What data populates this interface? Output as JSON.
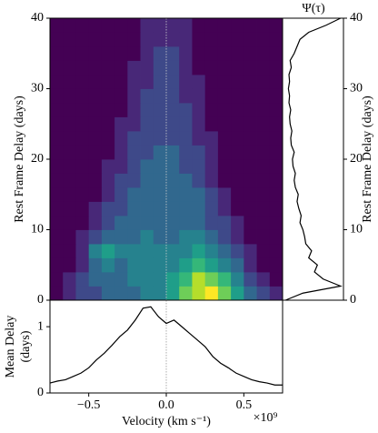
{
  "chart_data": [
    {
      "type": "heatmap",
      "ylabel": "Rest Frame Delay (days)",
      "colormap": "viridis",
      "clim": [
        0,
        9
      ],
      "xlim": [
        -0.75,
        0.75
      ],
      "ylim": [
        0,
        40
      ],
      "yticks": [
        0,
        10,
        20,
        30,
        40
      ],
      "x_bins": [
        -0.75,
        -0.6667,
        -0.5833,
        -0.5,
        -0.4167,
        -0.3333,
        -0.25,
        -0.1667,
        -0.0833,
        0,
        0.0833,
        0.1667,
        0.25,
        0.3333,
        0.4167,
        0.5,
        0.5833,
        0.6667,
        0.75
      ],
      "y_bins": [
        0,
        2,
        4,
        6,
        8,
        10,
        12,
        14,
        16,
        18,
        20,
        22,
        24,
        26,
        28,
        30,
        32,
        34,
        36,
        38,
        40
      ],
      "values": [
        [
          0,
          1,
          2,
          2,
          3,
          3,
          3,
          4,
          4,
          5,
          7,
          8,
          9,
          7,
          5,
          3,
          2,
          1
        ],
        [
          0,
          1,
          2,
          3,
          3,
          3,
          4,
          4,
          4,
          5,
          6,
          8,
          7,
          6,
          4,
          2,
          1,
          0
        ],
        [
          0,
          0,
          1,
          3,
          4,
          3,
          4,
          4,
          4,
          4,
          5,
          6,
          5,
          4,
          3,
          1,
          0,
          0
        ],
        [
          0,
          0,
          1,
          4,
          5,
          4,
          4,
          4,
          4,
          4,
          4,
          5,
          4,
          3,
          2,
          1,
          0,
          0
        ],
        [
          0,
          0,
          1,
          2,
          3,
          3,
          3,
          4,
          3,
          3,
          4,
          4,
          3,
          2,
          1,
          0,
          0,
          0
        ],
        [
          0,
          0,
          0,
          1,
          2,
          3,
          3,
          3,
          3,
          3,
          3,
          3,
          2,
          2,
          1,
          0,
          0,
          0
        ],
        [
          0,
          0,
          0,
          1,
          2,
          2,
          3,
          3,
          3,
          3,
          3,
          3,
          2,
          1,
          0,
          0,
          0,
          0
        ],
        [
          0,
          0,
          0,
          0,
          1,
          2,
          3,
          3,
          3,
          3,
          3,
          3,
          2,
          1,
          0,
          0,
          0,
          0
        ],
        [
          0,
          0,
          0,
          0,
          1,
          2,
          2,
          3,
          3,
          3,
          3,
          2,
          1,
          0,
          0,
          0,
          0,
          0
        ],
        [
          0,
          0,
          0,
          0,
          1,
          1,
          2,
          3,
          3,
          3,
          2,
          2,
          1,
          0,
          0,
          0,
          0,
          0
        ],
        [
          0,
          0,
          0,
          0,
          0,
          1,
          2,
          2,
          3,
          3,
          2,
          2,
          1,
          0,
          0,
          0,
          0,
          0
        ],
        [
          0,
          0,
          0,
          0,
          0,
          1,
          2,
          2,
          2,
          2,
          2,
          1,
          1,
          0,
          0,
          0,
          0,
          0
        ],
        [
          0,
          0,
          0,
          0,
          0,
          1,
          1,
          2,
          2,
          2,
          2,
          1,
          0,
          0,
          0,
          0,
          0,
          0
        ],
        [
          0,
          0,
          0,
          0,
          0,
          0,
          1,
          2,
          2,
          2,
          2,
          1,
          0,
          0,
          0,
          0,
          0,
          0
        ],
        [
          0,
          0,
          0,
          0,
          0,
          0,
          1,
          2,
          2,
          2,
          1,
          1,
          0,
          0,
          0,
          0,
          0,
          0
        ],
        [
          0,
          0,
          0,
          0,
          0,
          0,
          1,
          1,
          2,
          2,
          1,
          1,
          0,
          0,
          0,
          0,
          0,
          0
        ],
        [
          0,
          0,
          0,
          0,
          0,
          0,
          1,
          1,
          2,
          2,
          1,
          0,
          0,
          0,
          0,
          0,
          0,
          0
        ],
        [
          0,
          0,
          0,
          0,
          0,
          0,
          0,
          1,
          2,
          2,
          1,
          0,
          0,
          0,
          0,
          0,
          0,
          0
        ],
        [
          0,
          0,
          0,
          0,
          0,
          0,
          0,
          1,
          1,
          1,
          1,
          0,
          0,
          0,
          0,
          0,
          0,
          0
        ],
        [
          0,
          0,
          0,
          0,
          0,
          0,
          0,
          1,
          1,
          1,
          1,
          0,
          0,
          0,
          0,
          0,
          0,
          0
        ]
      ]
    },
    {
      "type": "line-vertical",
      "title": "Ψ(τ)",
      "ylabel": "Rest Frame Delay (days)",
      "color": "#000000",
      "xlim": [
        0,
        1.05
      ],
      "ylim": [
        0,
        40
      ],
      "yticks": [
        0,
        10,
        20,
        30,
        40
      ],
      "y": [
        0,
        1,
        2,
        3,
        4,
        5,
        6,
        7,
        8,
        9,
        10,
        11,
        12,
        13,
        14,
        15,
        16,
        17,
        18,
        19,
        20,
        21,
        22,
        23,
        24,
        25,
        26,
        27,
        28,
        29,
        30,
        31,
        32,
        33,
        34,
        35,
        36,
        37,
        38,
        39,
        40
      ],
      "values": [
        0.05,
        0.35,
        1.0,
        0.7,
        0.55,
        0.6,
        0.45,
        0.5,
        0.4,
        0.38,
        0.35,
        0.3,
        0.32,
        0.28,
        0.25,
        0.27,
        0.22,
        0.2,
        0.22,
        0.18,
        0.17,
        0.2,
        0.15,
        0.14,
        0.16,
        0.13,
        0.12,
        0.14,
        0.11,
        0.12,
        0.1,
        0.12,
        0.11,
        0.15,
        0.13,
        0.2,
        0.25,
        0.3,
        0.45,
        0.75,
        1.0
      ]
    },
    {
      "type": "line",
      "ylabel": [
        "Mean Delay",
        "(days)"
      ],
      "xlabel": "Velocity (km s⁻¹)",
      "x_multiplier": "×10⁹",
      "color": "#000000",
      "xlim": [
        -0.75,
        0.75
      ],
      "ylim": [
        0,
        1.4
      ],
      "yticks": [
        0,
        1
      ],
      "xticks": [
        {
          "value": -0.5,
          "label": "−0.5"
        },
        {
          "value": 0,
          "label": "0.0"
        },
        0.5
      ],
      "x": [
        -0.75,
        -0.7,
        -0.65,
        -0.6,
        -0.55,
        -0.5,
        -0.45,
        -0.4,
        -0.35,
        -0.3,
        -0.25,
        -0.2,
        -0.15,
        -0.1,
        -0.05,
        0,
        0.05,
        0.1,
        0.15,
        0.2,
        0.25,
        0.3,
        0.35,
        0.4,
        0.45,
        0.5,
        0.55,
        0.6,
        0.65,
        0.7,
        0.75
      ],
      "values": [
        0.15,
        0.18,
        0.2,
        0.25,
        0.3,
        0.38,
        0.5,
        0.6,
        0.72,
        0.85,
        0.95,
        1.1,
        1.28,
        1.3,
        1.15,
        1.05,
        1.1,
        1.0,
        0.9,
        0.8,
        0.7,
        0.55,
        0.45,
        0.38,
        0.3,
        0.25,
        0.2,
        0.17,
        0.15,
        0.12,
        0.12
      ]
    }
  ]
}
